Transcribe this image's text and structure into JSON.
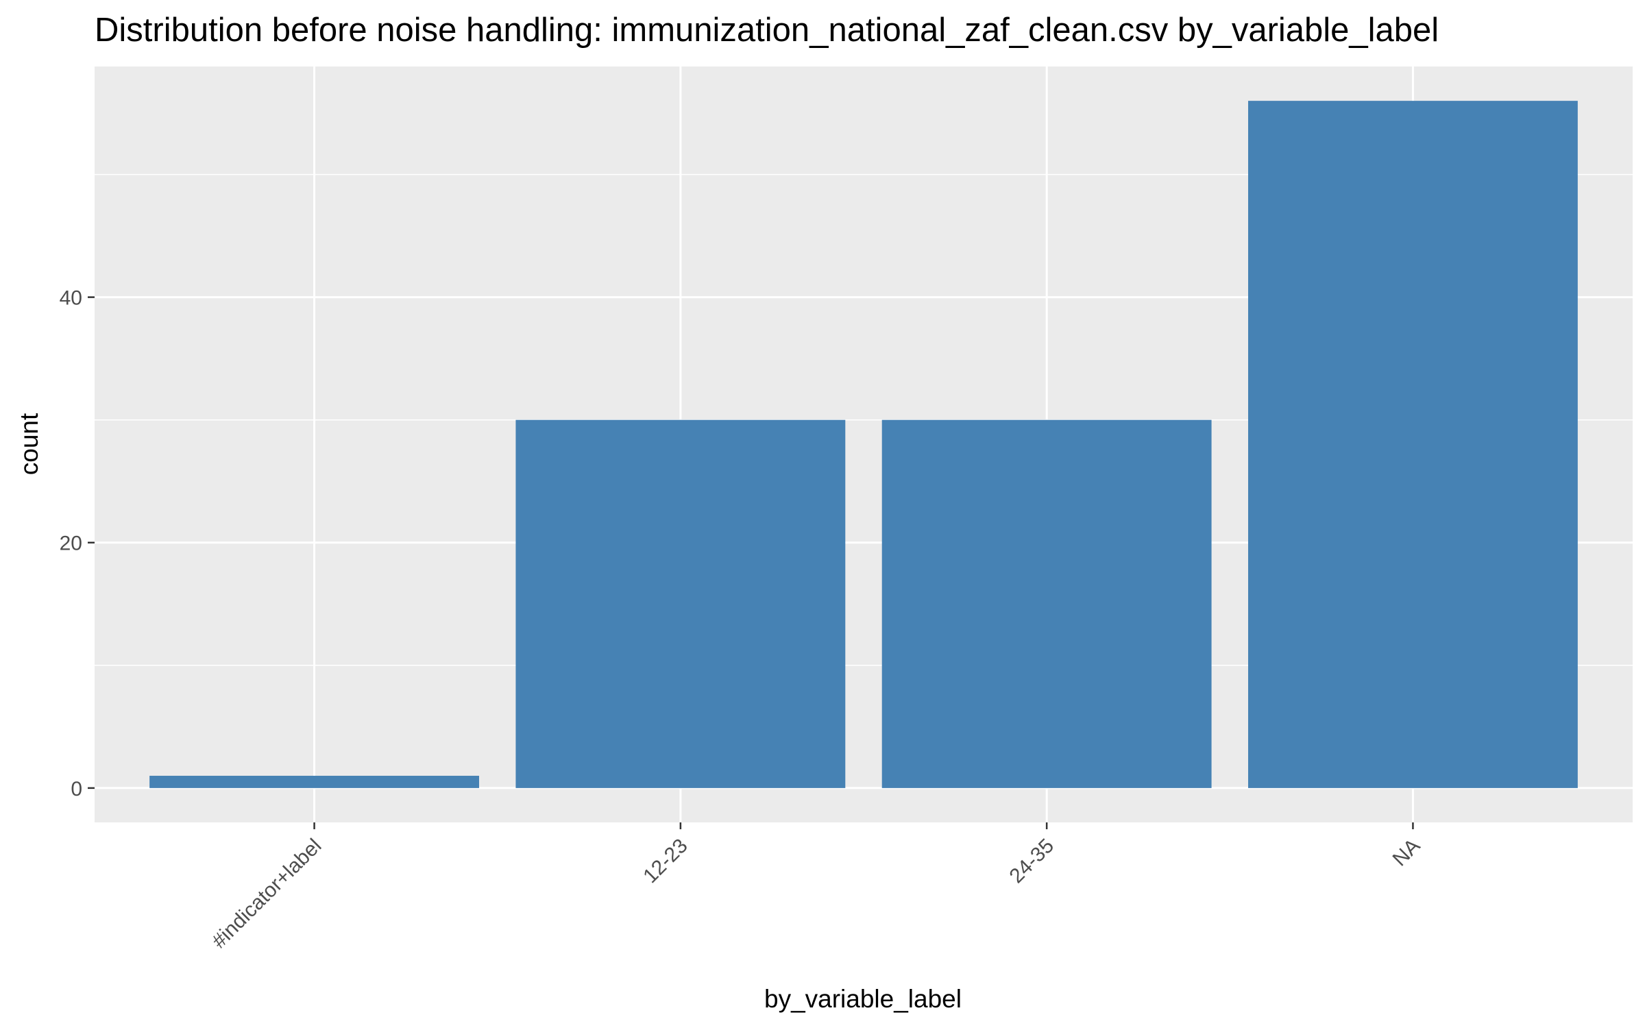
{
  "chart_data": {
    "type": "bar",
    "title": "Distribution before noise handling: immunization_national_zaf_clean.csv by_variable_label",
    "xlabel": "by_variable_label",
    "ylabel": "count",
    "categories": [
      "#indicator+label",
      "12-23",
      "24-35",
      "NA"
    ],
    "values": [
      1,
      30,
      30,
      56
    ],
    "ylim": [
      -2.8,
      58.8
    ],
    "yticks": [
      0,
      20,
      40
    ],
    "y_minor_ticks": [
      10,
      30,
      50
    ],
    "grid": true,
    "bar_color": "#4682B4",
    "panel_background": "#EBEBEB",
    "grid_color": "#FFFFFF"
  }
}
